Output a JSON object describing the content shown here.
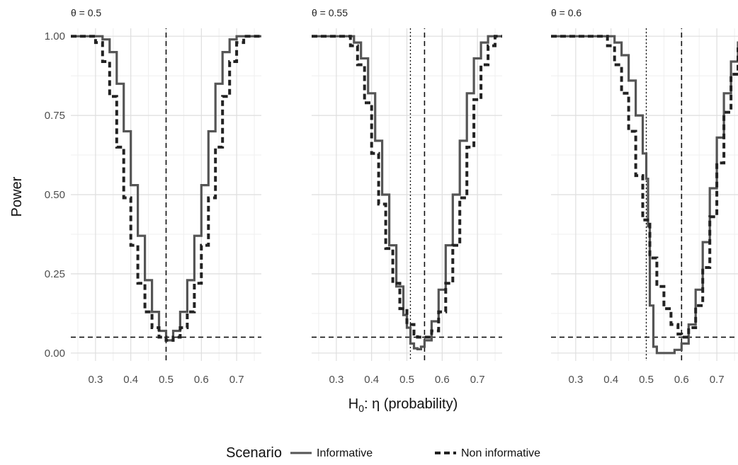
{
  "figure": {
    "ylabel": "Power",
    "xlabel_main": "H",
    "xlabel_sub": "0",
    "xlabel_rest": ":  η  (probability)"
  },
  "legend": {
    "title": "Scenario",
    "items": [
      {
        "label": "Informative",
        "style": "solid",
        "color": "#555555"
      },
      {
        "label": "Non informative",
        "style": "dashed",
        "color": "#222222"
      }
    ]
  },
  "chart_data": [
    {
      "type": "line",
      "facet_title": "θ = 0.5",
      "theta": 0.5,
      "xlim": [
        0.23,
        0.77
      ],
      "ylim": [
        -0.025,
        1.025
      ],
      "x_ticks": [
        "0.3",
        "0.4",
        "0.5",
        "0.6",
        "0.7"
      ],
      "y_ticks": [
        "0.00",
        "0.25",
        "0.50",
        "0.75",
        "1.00"
      ],
      "ref_hline": 0.05,
      "ref_vline_dashed": 0.5,
      "ref_vline_dotted": null,
      "series": [
        {
          "name": "Informative",
          "x": [
            0.23,
            0.3,
            0.32,
            0.34,
            0.36,
            0.38,
            0.4,
            0.42,
            0.44,
            0.46,
            0.48,
            0.5,
            0.52,
            0.54,
            0.56,
            0.58,
            0.6,
            0.62,
            0.64,
            0.66,
            0.68,
            0.7,
            0.77
          ],
          "y": [
            1.0,
            1.0,
            0.99,
            0.95,
            0.85,
            0.7,
            0.53,
            0.37,
            0.23,
            0.13,
            0.07,
            0.04,
            0.07,
            0.13,
            0.23,
            0.37,
            0.53,
            0.7,
            0.85,
            0.95,
            0.99,
            1.0,
            1.0
          ]
        },
        {
          "name": "Non informative",
          "x": [
            0.23,
            0.28,
            0.3,
            0.32,
            0.34,
            0.36,
            0.38,
            0.4,
            0.42,
            0.44,
            0.46,
            0.48,
            0.5,
            0.52,
            0.54,
            0.56,
            0.58,
            0.6,
            0.62,
            0.64,
            0.66,
            0.68,
            0.7,
            0.72,
            0.77
          ],
          "y": [
            1.0,
            1.0,
            0.98,
            0.92,
            0.81,
            0.65,
            0.49,
            0.34,
            0.22,
            0.13,
            0.08,
            0.05,
            0.04,
            0.05,
            0.08,
            0.13,
            0.22,
            0.34,
            0.49,
            0.65,
            0.81,
            0.92,
            0.98,
            1.0,
            1.0
          ]
        }
      ]
    },
    {
      "type": "line",
      "facet_title": "θ = 0.55",
      "theta": 0.55,
      "xlim": [
        0.23,
        0.77
      ],
      "ylim": [
        -0.025,
        1.025
      ],
      "x_ticks": [
        "0.3",
        "0.4",
        "0.5",
        "0.6",
        "0.7"
      ],
      "y_ticks": [
        "0.00",
        "0.25",
        "0.50",
        "0.75",
        "1.00"
      ],
      "ref_hline": 0.05,
      "ref_vline_dashed": 0.55,
      "ref_vline_dotted": 0.51,
      "series": [
        {
          "name": "Informative",
          "x": [
            0.23,
            0.33,
            0.35,
            0.37,
            0.39,
            0.41,
            0.43,
            0.45,
            0.47,
            0.49,
            0.5,
            0.51,
            0.52,
            0.53,
            0.54,
            0.55,
            0.57,
            0.59,
            0.61,
            0.63,
            0.65,
            0.67,
            0.69,
            0.71,
            0.73,
            0.75,
            0.77
          ],
          "y": [
            1.0,
            1.0,
            0.98,
            0.93,
            0.82,
            0.67,
            0.5,
            0.34,
            0.21,
            0.12,
            0.08,
            0.03,
            0.015,
            0.012,
            0.02,
            0.04,
            0.1,
            0.2,
            0.34,
            0.5,
            0.67,
            0.82,
            0.93,
            0.98,
            1.0,
            1.0,
            1.0
          ]
        },
        {
          "name": "Non informative",
          "x": [
            0.23,
            0.32,
            0.34,
            0.36,
            0.38,
            0.4,
            0.42,
            0.44,
            0.46,
            0.48,
            0.5,
            0.52,
            0.53,
            0.55,
            0.57,
            0.59,
            0.61,
            0.63,
            0.65,
            0.67,
            0.69,
            0.71,
            0.73,
            0.75,
            0.77
          ],
          "y": [
            1.0,
            1.0,
            0.97,
            0.91,
            0.79,
            0.63,
            0.47,
            0.33,
            0.22,
            0.14,
            0.09,
            0.06,
            0.05,
            0.05,
            0.07,
            0.13,
            0.22,
            0.34,
            0.49,
            0.65,
            0.8,
            0.91,
            0.97,
            1.0,
            1.0
          ]
        }
      ]
    },
    {
      "type": "line",
      "facet_title": "θ = 0.6",
      "theta": 0.6,
      "xlim": [
        0.23,
        0.77
      ],
      "ylim": [
        -0.025,
        1.025
      ],
      "x_ticks": [
        "0.3",
        "0.4",
        "0.5",
        "0.6",
        "0.7"
      ],
      "y_ticks": [
        "0.00",
        "0.25",
        "0.50",
        "0.75",
        "1.00"
      ],
      "ref_hline": 0.05,
      "ref_vline_dashed": 0.6,
      "ref_vline_dotted": 0.5,
      "series": [
        {
          "name": "Informative",
          "x": [
            0.23,
            0.39,
            0.41,
            0.43,
            0.45,
            0.47,
            0.49,
            0.5,
            0.505,
            0.51,
            0.52,
            0.53,
            0.55,
            0.58,
            0.6,
            0.62,
            0.64,
            0.66,
            0.68,
            0.7,
            0.72,
            0.74,
            0.76,
            0.77
          ],
          "y": [
            1.0,
            1.0,
            0.98,
            0.94,
            0.86,
            0.75,
            0.63,
            0.55,
            0.4,
            0.15,
            0.02,
            0.0,
            0.0,
            0.01,
            0.03,
            0.09,
            0.2,
            0.35,
            0.52,
            0.68,
            0.82,
            0.92,
            0.98,
            1.0
          ]
        },
        {
          "name": "Non informative",
          "x": [
            0.23,
            0.37,
            0.39,
            0.41,
            0.43,
            0.45,
            0.47,
            0.49,
            0.51,
            0.53,
            0.55,
            0.57,
            0.59,
            0.6,
            0.62,
            0.64,
            0.66,
            0.68,
            0.7,
            0.72,
            0.74,
            0.76,
            0.77
          ],
          "y": [
            1.0,
            1.0,
            0.97,
            0.91,
            0.82,
            0.7,
            0.56,
            0.42,
            0.3,
            0.21,
            0.14,
            0.09,
            0.06,
            0.05,
            0.08,
            0.15,
            0.27,
            0.43,
            0.6,
            0.76,
            0.88,
            0.96,
            0.98
          ]
        }
      ]
    }
  ]
}
